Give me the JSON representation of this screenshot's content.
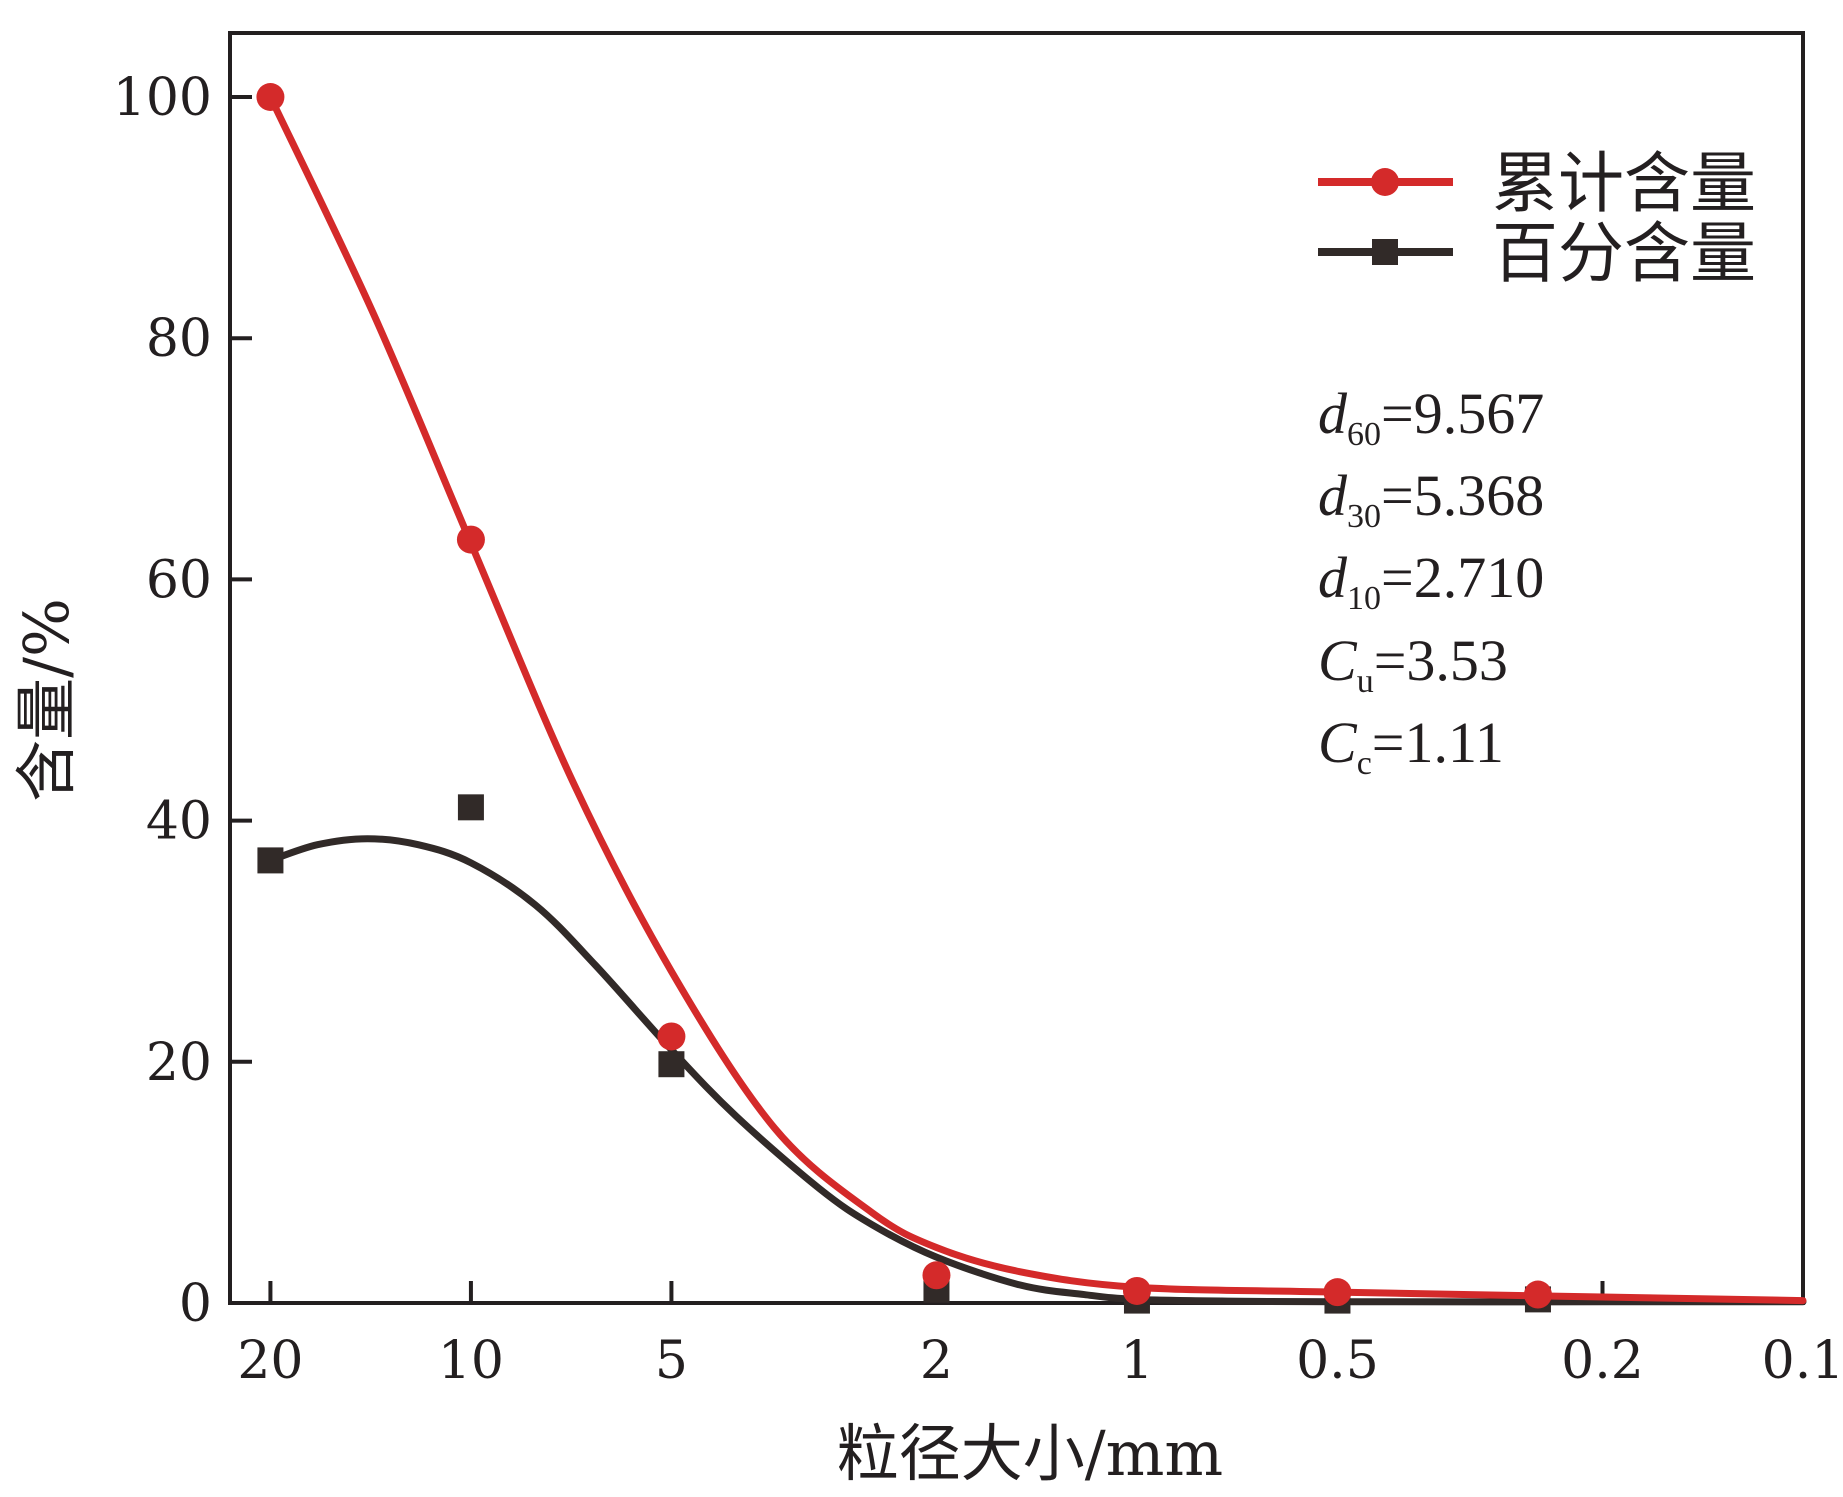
{
  "chart_data": {
    "type": "line",
    "x_scale": "log",
    "x_reversed": true,
    "xlabel": "粒径大小/mm",
    "ylabel": "含量/%",
    "xlim": [
      23,
      0.1
    ],
    "ylim": [
      0,
      105
    ],
    "x_ticks": [
      {
        "value": 20,
        "label": "20"
      },
      {
        "value": 10,
        "label": "10"
      },
      {
        "value": 5,
        "label": "5"
      },
      {
        "value": 2,
        "label": "2"
      },
      {
        "value": 1,
        "label": "1"
      },
      {
        "value": 0.5,
        "label": "0.5"
      },
      {
        "value": 0.2,
        "label": "0.2"
      },
      {
        "value": 0.1,
        "label": "0.1"
      }
    ],
    "y_ticks": [
      {
        "value": 0,
        "label": "0"
      },
      {
        "value": 20,
        "label": "20"
      },
      {
        "value": 40,
        "label": "40"
      },
      {
        "value": 60,
        "label": "60"
      },
      {
        "value": 80,
        "label": "80"
      },
      {
        "value": 100,
        "label": "100"
      }
    ],
    "series": [
      {
        "name": "累计含量",
        "color": "#d42a2a",
        "marker": "circle",
        "points": [
          {
            "x": 20,
            "y": 100
          },
          {
            "x": 10,
            "y": 63.3
          },
          {
            "x": 5,
            "y": 22.1
          },
          {
            "x": 2,
            "y": 2.3
          },
          {
            "x": 1,
            "y": 1.0
          },
          {
            "x": 0.5,
            "y": 0.9
          },
          {
            "x": 0.25,
            "y": 0.7
          }
        ],
        "fit_curve": [
          {
            "x": 20,
            "y": 100
          },
          {
            "x": 14,
            "y": 82
          },
          {
            "x": 10,
            "y": 63
          },
          {
            "x": 7,
            "y": 43
          },
          {
            "x": 5,
            "y": 27.5
          },
          {
            "x": 3.5,
            "y": 14.5
          },
          {
            "x": 2.5,
            "y": 7.5
          },
          {
            "x": 2,
            "y": 4.6
          },
          {
            "x": 1.5,
            "y": 2.6
          },
          {
            "x": 1,
            "y": 1.3
          },
          {
            "x": 0.5,
            "y": 0.9
          },
          {
            "x": 0.2,
            "y": 0.5
          },
          {
            "x": 0.1,
            "y": 0.2
          }
        ]
      },
      {
        "name": "百分含量",
        "color": "#312a28",
        "marker": "square",
        "points": [
          {
            "x": 20,
            "y": 36.7
          },
          {
            "x": 10,
            "y": 41.1
          },
          {
            "x": 5,
            "y": 19.8
          },
          {
            "x": 2,
            "y": 1.1
          },
          {
            "x": 1,
            "y": 0.2
          },
          {
            "x": 0.5,
            "y": 0.2
          },
          {
            "x": 0.25,
            "y": 0.3
          }
        ],
        "fit_curve": [
          {
            "x": 20,
            "y": 36.7
          },
          {
            "x": 17,
            "y": 38.0
          },
          {
            "x": 14.3,
            "y": 38.5
          },
          {
            "x": 12,
            "y": 38.0
          },
          {
            "x": 10,
            "y": 36.5
          },
          {
            "x": 8,
            "y": 33.0
          },
          {
            "x": 6.5,
            "y": 28.0
          },
          {
            "x": 5,
            "y": 21.0
          },
          {
            "x": 4,
            "y": 15.5
          },
          {
            "x": 3,
            "y": 9.5
          },
          {
            "x": 2.5,
            "y": 6.5
          },
          {
            "x": 2,
            "y": 3.8
          },
          {
            "x": 1.5,
            "y": 1.5
          },
          {
            "x": 1.2,
            "y": 0.7
          },
          {
            "x": 1,
            "y": 0.3
          },
          {
            "x": 0.7,
            "y": 0.15
          },
          {
            "x": 0.5,
            "y": 0.1
          },
          {
            "x": 0.2,
            "y": 0.1
          },
          {
            "x": 0.1,
            "y": 0.1
          }
        ]
      }
    ],
    "legend_position": "top-right",
    "annotations": [
      {
        "sym": "d",
        "sub": "60",
        "value": "=9.567"
      },
      {
        "sym": "d",
        "sub": "30",
        "value": "=5.368"
      },
      {
        "sym": "d",
        "sub": "10",
        "value": "=2.710"
      },
      {
        "sym": "C",
        "sub": "u",
        "value": "=3.53"
      },
      {
        "sym": "C",
        "sub": "c",
        "value": "=1.11"
      }
    ]
  }
}
